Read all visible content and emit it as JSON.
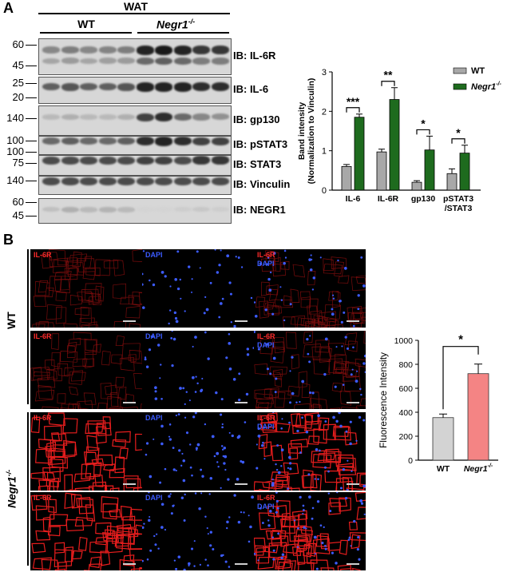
{
  "panelA": {
    "letter": "A",
    "wat_label": "WAT",
    "wt_label": "WT",
    "negr1_label": "Negr1",
    "negr1_sup": "-/-",
    "blots": [
      {
        "ib": "IB: IL-6R",
        "mw": [
          "60",
          "45"
        ]
      },
      {
        "ib": "IB: IL-6",
        "mw": [
          "25",
          "20"
        ]
      },
      {
        "ib": "IB: gp130",
        "mw": [
          "140"
        ]
      },
      {
        "ib": "IB: pSTAT3",
        "mw": [
          "100"
        ]
      },
      {
        "ib": "IB: STAT3",
        "mw": [
          "100",
          "75"
        ]
      },
      {
        "ib": "IB: Vinculin",
        "mw": [
          "140"
        ]
      },
      {
        "ib": "IB: NEGR1",
        "mw": [
          "60",
          "45"
        ]
      }
    ]
  },
  "panelB": {
    "letter": "B",
    "row_group_wt": "WT",
    "row_group_negr1": "Negr1",
    "row_group_negr1_sup": "-/-",
    "label_il6r": "IL-6R",
    "label_dapi": "DAPI"
  },
  "colors": {
    "wt_bar": "#a8a8a8",
    "negr1_bar": "#1e6b1e",
    "fluor_wt": "#d3d3d3",
    "fluor_negr1": "#f48484",
    "il6r_red": "#ff2b2b",
    "dapi_blue": "#3b5bff"
  },
  "chart_data": [
    {
      "type": "bar",
      "categories": [
        "IL-6",
        "IL-6R",
        "gp130",
        "pSTAT3\n/STAT3"
      ],
      "category_lines": [
        [
          "IL-6"
        ],
        [
          "IL-6R"
        ],
        [
          "gp130"
        ],
        [
          "pSTAT3",
          "/STAT3"
        ]
      ],
      "series": [
        {
          "name": "WT",
          "values": [
            0.6,
            0.97,
            0.2,
            0.42
          ],
          "errors": [
            0.05,
            0.07,
            0.04,
            0.12
          ]
        },
        {
          "name": "Negr1-/-",
          "name_main": "Negr1",
          "name_sup": "-/-",
          "values": [
            1.85,
            2.3,
            1.02,
            0.94
          ],
          "errors": [
            0.08,
            0.3,
            0.35,
            0.2
          ]
        }
      ],
      "significance": [
        "***",
        "**",
        "*",
        "*"
      ],
      "ylabel_lines": [
        "Band intensity",
        "(Normalization to Vinculin)"
      ],
      "yticks": [
        "0",
        "1",
        "2",
        "3"
      ],
      "ylim": [
        0,
        3
      ],
      "legend_position": "top-right"
    },
    {
      "type": "bar",
      "categories": [
        "WT",
        "Negr1-/-"
      ],
      "category_main": [
        "WT",
        "Negr1"
      ],
      "category_sup": [
        "",
        "-/-"
      ],
      "values": [
        355,
        722
      ],
      "errors": [
        30,
        80
      ],
      "significance": "*",
      "ylabel": "Fluorescence Intensity",
      "yticks": [
        "0",
        "200",
        "400",
        "600",
        "800",
        "1000"
      ],
      "ylim": [
        0,
        1000
      ]
    }
  ]
}
